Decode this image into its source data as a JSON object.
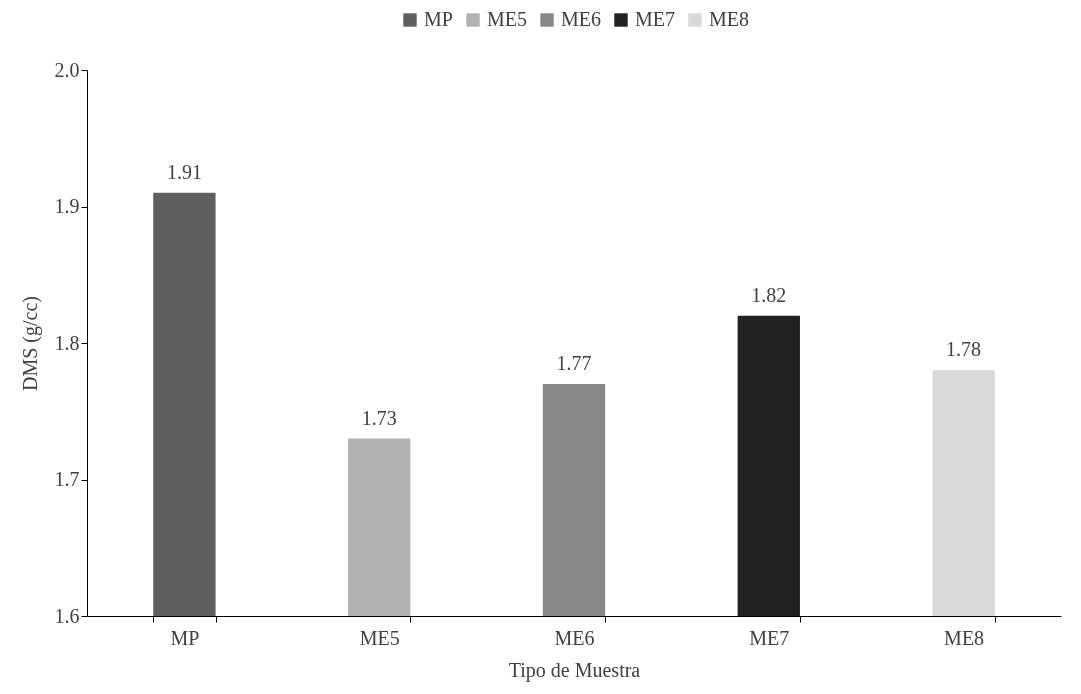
{
  "chart_data": {
    "type": "bar",
    "xlabel": "Tipo de Muestra",
    "ylabel": "DMS  (g/cc)",
    "categories": [
      "MP",
      "ME5",
      "ME6",
      "ME7",
      "ME8"
    ],
    "series": [
      {
        "name": "MP",
        "color": "#5f5f5f",
        "values": [
          1.91,
          null,
          null,
          null,
          null
        ]
      },
      {
        "name": "ME5",
        "color": "#b2b2b2",
        "values": [
          null,
          1.73,
          null,
          null,
          null
        ]
      },
      {
        "name": "ME6",
        "color": "#888888",
        "values": [
          null,
          null,
          1.77,
          null,
          null
        ]
      },
      {
        "name": "ME7",
        "color": "#222222",
        "values": [
          null,
          null,
          null,
          1.82,
          null
        ]
      },
      {
        "name": "ME8",
        "color": "#d9d9d9",
        "values": [
          null,
          null,
          null,
          null,
          1.78
        ]
      }
    ],
    "ylim": [
      1.6,
      2.0
    ],
    "yticks": [
      1.6,
      1.7,
      1.8,
      1.9,
      {
        "value": 2.0,
        "label": "2.0"
      }
    ],
    "data_labels": true,
    "legend": "top",
    "grid": false
  }
}
